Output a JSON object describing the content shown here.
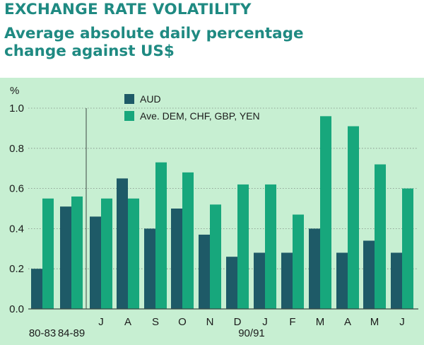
{
  "header": {
    "title": "EXCHANGE RATE VOLATILITY",
    "subtitle": "Average absolute daily percentage change against US$"
  },
  "colors": {
    "plot_background": "#c7efd2",
    "series_aud": "#1e5a67",
    "series_avg": "#17a77c",
    "title_text": "#1f8a82",
    "gridline": "#7f8c83"
  },
  "chart_data": {
    "type": "bar",
    "title": "EXCHANGE RATE VOLATILITY",
    "subtitle": "Average absolute daily percentage change against US$",
    "ylabel": "%",
    "ylim": [
      0,
      1.0
    ],
    "yticks": [
      "0.0",
      "0.2",
      "0.4",
      "0.6",
      "0.8",
      "1.0"
    ],
    "grid": true,
    "legend_position": "top-left",
    "categories": [
      "80-83",
      "84-89",
      "J",
      "A",
      "S",
      "O",
      "N",
      "D",
      "J",
      "F",
      "M",
      "A",
      "M",
      "J"
    ],
    "x_sublabel": "90/91",
    "series": [
      {
        "name": "AUD",
        "values": [
          0.2,
          0.51,
          0.46,
          0.65,
          0.4,
          0.5,
          0.37,
          0.26,
          0.28,
          0.28,
          0.4,
          0.28,
          0.34,
          0.28
        ]
      },
      {
        "name": "Ave. DEM, CHF, GBP, YEN",
        "values": [
          0.55,
          0.56,
          0.55,
          0.55,
          0.73,
          0.68,
          0.52,
          0.62,
          0.62,
          0.47,
          0.96,
          0.91,
          0.72,
          0.6
        ]
      }
    ]
  }
}
